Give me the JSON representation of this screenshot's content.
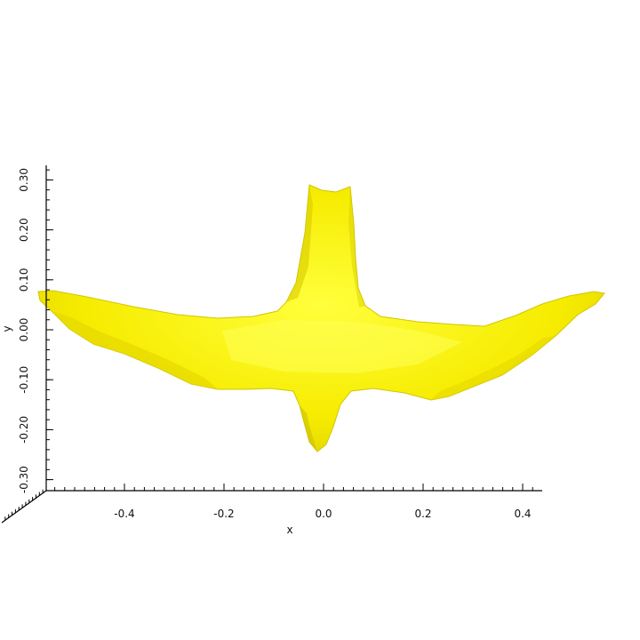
{
  "scene": {
    "object": "bird-shaped 3D surface",
    "surface_color": "#f2e600",
    "shade_color": "#c9bd00",
    "highlight_color": "#ffff3a",
    "background": "#ffffff"
  },
  "axes": {
    "x": {
      "title": "x",
      "range": [
        -0.55,
        0.43
      ],
      "major_ticks": [
        {
          "value": -0.4,
          "label": "-0.4"
        },
        {
          "value": -0.2,
          "label": "-0.2"
        },
        {
          "value": 0.0,
          "label": "0.0"
        },
        {
          "value": 0.2,
          "label": "0.2"
        },
        {
          "value": 0.4,
          "label": "0.4"
        }
      ]
    },
    "y": {
      "title": "y",
      "range": [
        -0.33,
        0.32
      ],
      "major_ticks": [
        {
          "value": 0.3,
          "label": "0.30"
        },
        {
          "value": 0.2,
          "label": "0.20"
        },
        {
          "value": 0.1,
          "label": "0.10"
        },
        {
          "value": 0.0,
          "label": "0.00"
        },
        {
          "value": -0.1,
          "label": "-0.10"
        },
        {
          "value": -0.2,
          "label": "-0.20"
        },
        {
          "value": -0.3,
          "label": "-0.30"
        }
      ]
    }
  }
}
